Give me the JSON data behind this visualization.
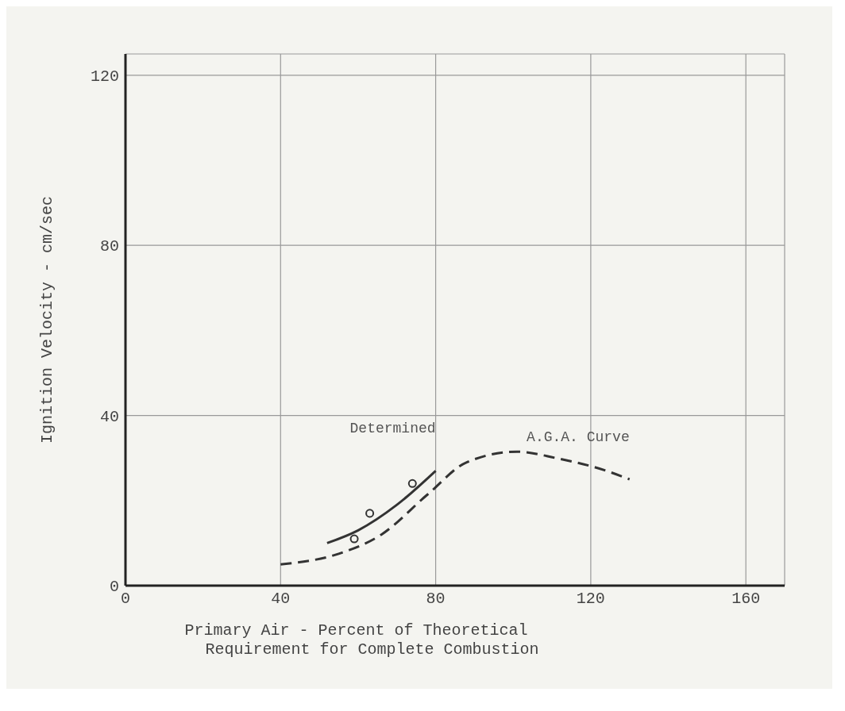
{
  "chart_data": {
    "type": "line",
    "xlabel": "Primary Air - Percent of Theoretical\nRequirement for Complete Combustion",
    "ylabel": "Ignition Velocity - cm/sec",
    "series": [
      {
        "name": "Determined",
        "color": "#333333",
        "line_style": "solid",
        "marker": "none",
        "x": [
          52,
          60,
          70,
          80
        ],
        "values": [
          10,
          13,
          19,
          27
        ]
      },
      {
        "type": "scatter",
        "color": "#333333",
        "marker": "circle",
        "x": [
          59,
          63,
          74
        ],
        "values": [
          11,
          17,
          24
        ]
      },
      {
        "name": "A.G.A. Curve",
        "color": "#333333",
        "line_style": "dashed",
        "marker": "none",
        "x": [
          40,
          55,
          66,
          78,
          88,
          101,
          111,
          124,
          130
        ],
        "values": [
          5,
          7.5,
          12,
          21.5,
          29,
          31.5,
          30,
          27,
          25
        ]
      }
    ],
    "xlim": [
      0,
      170
    ],
    "xticks": [
      0,
      40,
      80,
      120,
      160
    ],
    "ylim": [
      0,
      125
    ],
    "yticks": [
      0,
      40,
      80,
      120
    ],
    "grid": true
  }
}
